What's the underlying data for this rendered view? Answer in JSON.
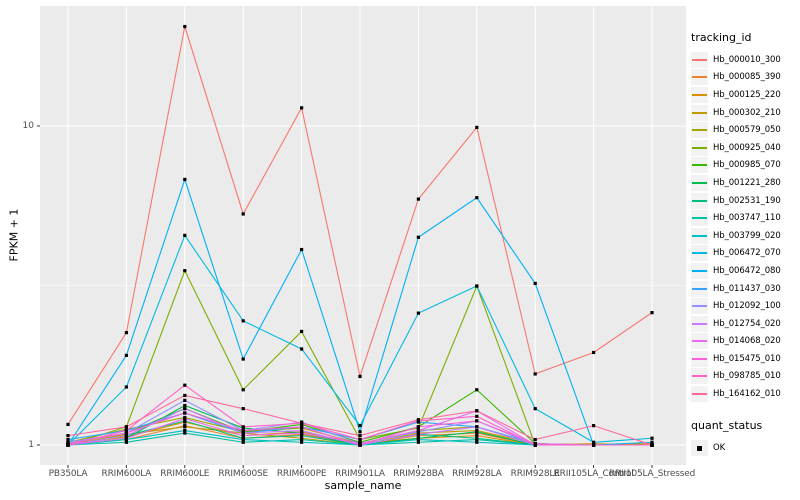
{
  "figure": {
    "ylabel": "FPKM + 1",
    "xlabel": "sample_name",
    "legend_title_tracking": "tracking_id",
    "legend_title_quant": "quant_status",
    "quant_items": [
      {
        "label": "OK",
        "marker": "black-square-icon"
      }
    ],
    "colors": {
      "panel_bg": "#EBEBEB",
      "gridline": "#FFFFFF",
      "axis_text": "#4D4D4D",
      "tick_mark": "#333333",
      "legend_key_bg": "#F2F2F2",
      "point": "#000000"
    }
  },
  "chart_data": {
    "type": "line",
    "title": "",
    "xlabel": "sample_name",
    "ylabel": "FPKM + 1",
    "yscale": "log10",
    "y_tick_labels": [
      "1",
      "10"
    ],
    "y_tick_values": [
      1,
      10
    ],
    "y_minor_values": [
      3.162
    ],
    "ylim_approx": [
      0.87,
      24
    ],
    "grid": "on",
    "legend_position": "right",
    "point_marker": "small-black-square",
    "categories": [
      "PB350LA",
      "RRIM600LA",
      "RRIM600LE",
      "RRIM600SE",
      "RRIM600PE",
      "RRIM901LA",
      "RRIM928BA",
      "RRIM928LA",
      "RRIM928LE",
      "RRII105LA_Control",
      "RRII105LA_Stressed"
    ],
    "series": [
      {
        "name": "Hb_000010_300",
        "color": "#F8766D",
        "values": [
          1.16,
          2.25,
          20.5,
          5.3,
          11.4,
          1.64,
          5.9,
          9.9,
          1.67,
          1.95,
          2.6
        ]
      },
      {
        "name": "Hb_000085_390",
        "color": "#EA8331",
        "values": [
          1.0,
          1.04,
          1.15,
          1.05,
          1.08,
          1.0,
          1.07,
          1.09,
          1.0,
          1.0,
          1.0
        ]
      },
      {
        "name": "Hb_000125_220",
        "color": "#D89000",
        "values": [
          1.01,
          1.06,
          1.18,
          1.07,
          1.1,
          1.01,
          1.05,
          1.07,
          1.0,
          1.01,
          1.0
        ]
      },
      {
        "name": "Hb_000302_210",
        "color": "#C09B00",
        "values": [
          1.0,
          1.08,
          1.14,
          1.09,
          1.05,
          1.0,
          1.09,
          1.11,
          1.01,
          1.0,
          1.01
        ]
      },
      {
        "name": "Hb_000579_050",
        "color": "#A3A500",
        "values": [
          1.02,
          1.12,
          1.22,
          1.1,
          1.13,
          1.01,
          1.11,
          1.14,
          1.0,
          1.0,
          1.0
        ]
      },
      {
        "name": "Hb_000925_040",
        "color": "#7CAE00",
        "values": [
          1.0,
          1.14,
          3.52,
          1.49,
          2.27,
          1.04,
          1.13,
          3.15,
          1.0,
          1.0,
          1.0
        ]
      },
      {
        "name": "Hb_000985_070",
        "color": "#39B600",
        "values": [
          1.01,
          1.09,
          1.3,
          1.1,
          1.16,
          1.02,
          1.14,
          1.49,
          1.01,
          1.0,
          1.0
        ]
      },
      {
        "name": "Hb_001221_280",
        "color": "#00BB4E",
        "values": [
          1.0,
          1.05,
          1.33,
          1.13,
          1.09,
          1.0,
          1.05,
          1.1,
          1.0,
          1.0,
          1.0
        ]
      },
      {
        "name": "Hb_002531_190",
        "color": "#00BF7D",
        "values": [
          1.0,
          1.07,
          1.19,
          1.05,
          1.07,
          1.0,
          1.08,
          1.05,
          1.0,
          1.0,
          1.0
        ]
      },
      {
        "name": "Hb_003747_110",
        "color": "#00C1A3",
        "values": [
          1.0,
          1.02,
          1.09,
          1.02,
          1.04,
          1.0,
          1.02,
          1.04,
          1.0,
          1.0,
          1.0
        ]
      },
      {
        "name": "Hb_003799_020",
        "color": "#00BFC4",
        "values": [
          1.0,
          1.04,
          1.11,
          1.04,
          1.02,
          1.0,
          1.04,
          1.02,
          1.0,
          1.0,
          1.0
        ]
      },
      {
        "name": "Hb_006472_070",
        "color": "#00BAE0",
        "values": [
          1.0,
          1.52,
          4.54,
          2.45,
          2.0,
          1.15,
          2.59,
          3.15,
          1.3,
          1.02,
          1.05
        ]
      },
      {
        "name": "Hb_006472_080",
        "color": "#00B0F6",
        "values": [
          1.0,
          1.91,
          6.8,
          1.86,
          4.1,
          1.1,
          4.48,
          5.96,
          3.21,
          1.0,
          1.02
        ]
      },
      {
        "name": "Hb_011437_030",
        "color": "#35A2FF",
        "values": [
          1.04,
          1.11,
          1.26,
          1.09,
          1.14,
          1.04,
          1.18,
          1.14,
          1.01,
          1.0,
          1.0
        ]
      },
      {
        "name": "Hb_012092_100",
        "color": "#9590FF",
        "values": [
          1.02,
          1.09,
          1.38,
          1.11,
          1.18,
          1.01,
          1.1,
          1.19,
          1.0,
          1.0,
          1.0
        ]
      },
      {
        "name": "Hb_012754_020",
        "color": "#C77CFF",
        "values": [
          1.0,
          1.07,
          1.3,
          1.09,
          1.11,
          1.0,
          1.08,
          1.14,
          1.0,
          1.0,
          1.0
        ]
      },
      {
        "name": "Hb_014068_020",
        "color": "#E76BF3",
        "values": [
          1.0,
          1.05,
          1.21,
          1.07,
          1.09,
          1.01,
          1.11,
          1.28,
          1.0,
          1.0,
          1.0
        ]
      },
      {
        "name": "Hb_015475_010",
        "color": "#FA62DB",
        "values": [
          1.01,
          1.09,
          1.26,
          1.11,
          1.14,
          1.0,
          1.14,
          1.19,
          1.01,
          1.0,
          1.0
        ]
      },
      {
        "name": "Hb_098785_010",
        "color": "#FF61C9",
        "values": [
          1.0,
          1.11,
          1.54,
          1.14,
          1.17,
          1.04,
          1.19,
          1.23,
          1.0,
          1.0,
          1.0
        ]
      },
      {
        "name": "Hb_164162_010",
        "color": "#FF689F",
        "values": [
          1.07,
          1.14,
          1.43,
          1.3,
          1.17,
          1.07,
          1.2,
          1.28,
          1.04,
          1.15,
          1.0
        ]
      }
    ]
  }
}
